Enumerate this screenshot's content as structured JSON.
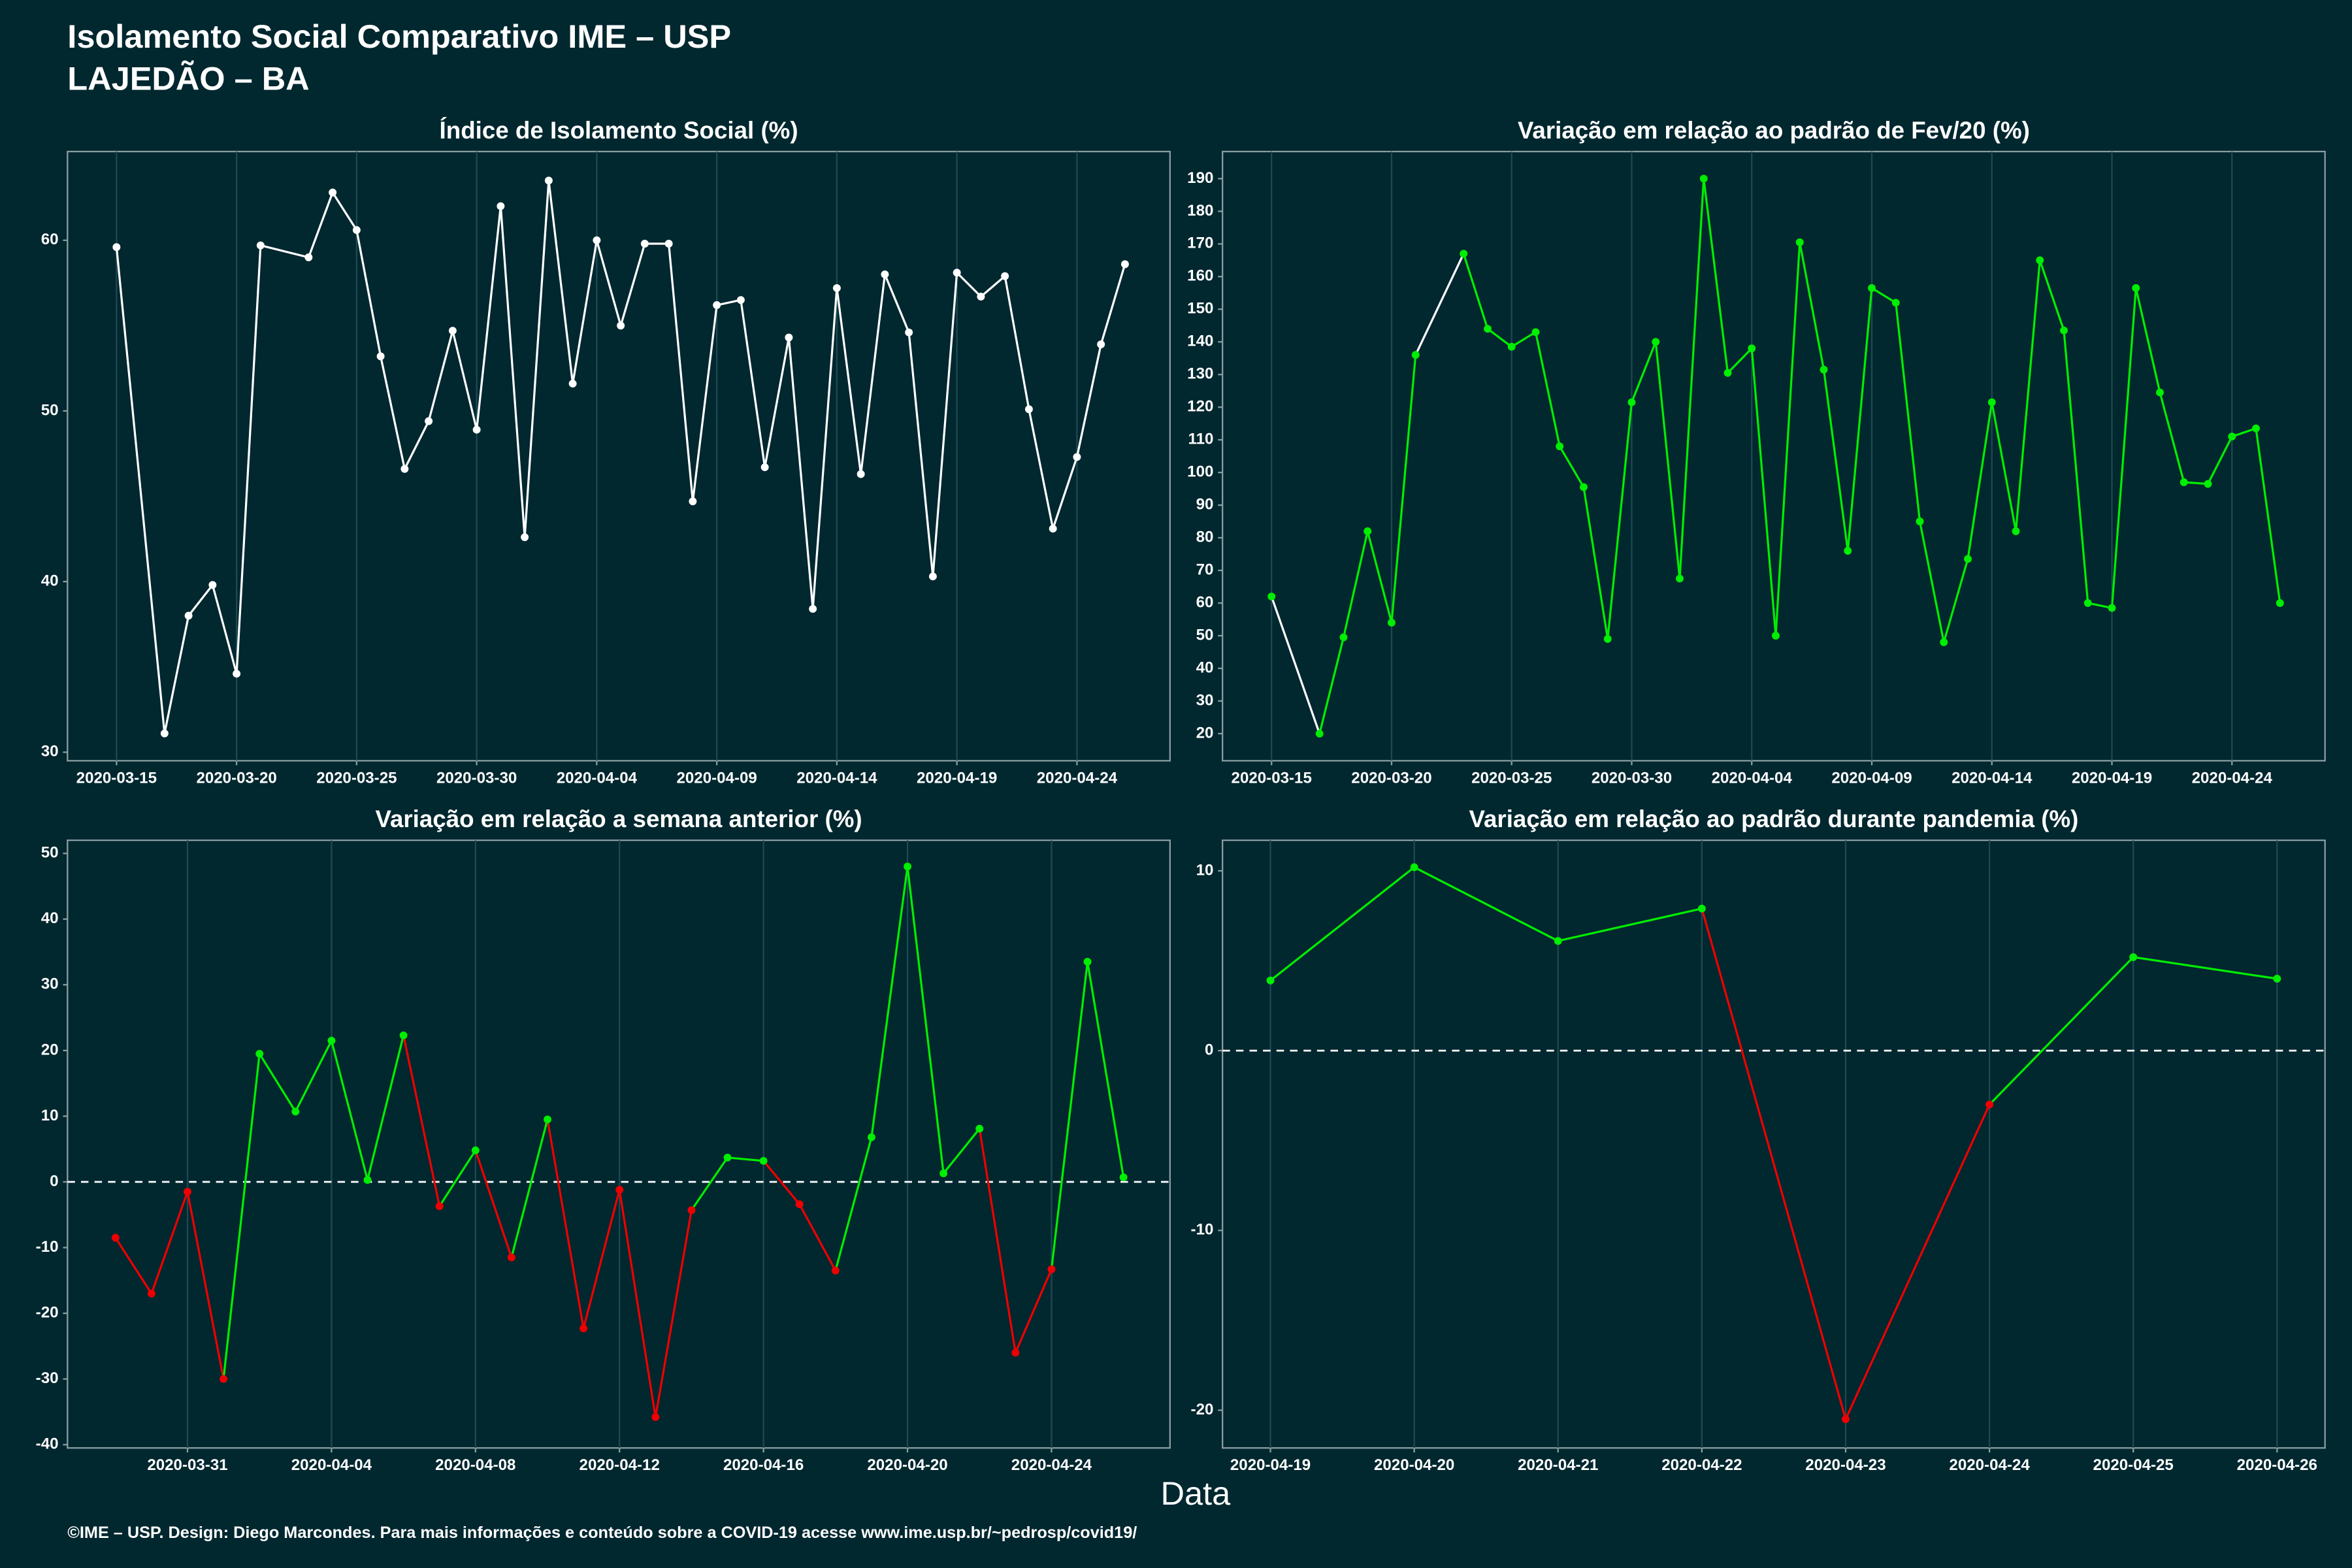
{
  "page": {
    "title": "Isolamento Social Comparativo IME – USP",
    "subtitle": "LAJEDÃO – BA",
    "x_label": "Data",
    "footer": "©IME – USP. Design: Diego Marcondes. Para mais informações e conteúdo sobre a COVID-19 acesse www.ime.usp.br/~pedrosp/covid19/"
  },
  "chart_data": [
    {
      "type": "line",
      "title": "Índice de Isolamento Social (%)",
      "color": "#ffffff",
      "gap_color": "#ffffff",
      "x": [
        "2020-03-15",
        "2020-03-17",
        "2020-03-18",
        "2020-03-19",
        "2020-03-20",
        "2020-03-21",
        "2020-03-23",
        "2020-03-24",
        "2020-03-25",
        "2020-03-26",
        "2020-03-27",
        "2020-03-28",
        "2020-03-29",
        "2020-03-30",
        "2020-03-31",
        "2020-04-01",
        "2020-04-02",
        "2020-04-03",
        "2020-04-04",
        "2020-04-05",
        "2020-04-06",
        "2020-04-07",
        "2020-04-08",
        "2020-04-09",
        "2020-04-10",
        "2020-04-11",
        "2020-04-12",
        "2020-04-13",
        "2020-04-14",
        "2020-04-15",
        "2020-04-16",
        "2020-04-17",
        "2020-04-18",
        "2020-04-19",
        "2020-04-20",
        "2020-04-21",
        "2020-04-22",
        "2020-04-23",
        "2020-04-24",
        "2020-04-25",
        "2020-04-26"
      ],
      "values": [
        59.6,
        31.1,
        38,
        39.8,
        34.6,
        59.7,
        59,
        62.8,
        60.6,
        53.2,
        46.6,
        49.4,
        54.7,
        48.9,
        62,
        42.6,
        63.5,
        51.6,
        60,
        55,
        59.8,
        59.8,
        44.7,
        56.2,
        56.5,
        46.7,
        54.3,
        38.4,
        57.2,
        46.3,
        58,
        54.6,
        40.3,
        58.1,
        56.7,
        57.9,
        50.1,
        43.1,
        47.3,
        53.9,
        58.6
      ],
      "xlim": [
        "2020-03-12T23:00",
        "2020-04-27T21:00"
      ],
      "xticks": [
        "2020-03-15",
        "2020-03-20",
        "2020-03-25",
        "2020-03-30",
        "2020-04-04",
        "2020-04-09",
        "2020-04-14",
        "2020-04-19",
        "2020-04-24"
      ],
      "ylim": [
        29.5,
        65.2
      ],
      "yticks": [
        30,
        40,
        50,
        60
      ]
    },
    {
      "type": "line",
      "title": "Variação em relação ao padrão de Fev/20 (%)",
      "color": "#00ee00",
      "gap_color": "#ffffff",
      "x": [
        "2020-03-15",
        "2020-03-17",
        "2020-03-18",
        "2020-03-19",
        "2020-03-20",
        "2020-03-21",
        "2020-03-23",
        "2020-03-24",
        "2020-03-25",
        "2020-03-26",
        "2020-03-27",
        "2020-03-28",
        "2020-03-29",
        "2020-03-30",
        "2020-03-31",
        "2020-04-01",
        "2020-04-02",
        "2020-04-03",
        "2020-04-04",
        "2020-04-05",
        "2020-04-06",
        "2020-04-07",
        "2020-04-08",
        "2020-04-09",
        "2020-04-10",
        "2020-04-11",
        "2020-04-12",
        "2020-04-13",
        "2020-04-14",
        "2020-04-15",
        "2020-04-16",
        "2020-04-17",
        "2020-04-18",
        "2020-04-19",
        "2020-04-20",
        "2020-04-21",
        "2020-04-22",
        "2020-04-23",
        "2020-04-24",
        "2020-04-25",
        "2020-04-26"
      ],
      "values": [
        62,
        20,
        49.5,
        82,
        54,
        136,
        167,
        144,
        138.5,
        143,
        108,
        95.5,
        49,
        121.5,
        140,
        67.5,
        190,
        130.5,
        138,
        50,
        170.5,
        131.5,
        76,
        156.5,
        152,
        85,
        48,
        73.5,
        121.5,
        82,
        165,
        143.5,
        60,
        58.5,
        156.5,
        124.5,
        97,
        96.5,
        111,
        113.5,
        60
      ],
      "xlim": [
        "2020-03-12T23:00",
        "2020-04-27T21:00"
      ],
      "xticks": [
        "2020-03-15",
        "2020-03-20",
        "2020-03-25",
        "2020-03-30",
        "2020-04-04",
        "2020-04-09",
        "2020-04-14",
        "2020-04-19",
        "2020-04-24"
      ],
      "ylim": [
        11.7,
        198.3
      ],
      "yticks": [
        20,
        30,
        40,
        50,
        60,
        70,
        80,
        90,
        100,
        110,
        120,
        130,
        140,
        150,
        160,
        170,
        180,
        190
      ]
    },
    {
      "type": "line",
      "title": "Variação em relação a semana anterior (%)",
      "color": "#00ee00",
      "negative_color": "#ee0000",
      "zero_line": true,
      "x": [
        "2020-03-29",
        "2020-03-30",
        "2020-03-31",
        "2020-04-01",
        "2020-04-02",
        "2020-04-03",
        "2020-04-04",
        "2020-04-05",
        "2020-04-06",
        "2020-04-07",
        "2020-04-08",
        "2020-04-09",
        "2020-04-10",
        "2020-04-11",
        "2020-04-12",
        "2020-04-13",
        "2020-04-14",
        "2020-04-15",
        "2020-04-16",
        "2020-04-17",
        "2020-04-18",
        "2020-04-19",
        "2020-04-20",
        "2020-04-21",
        "2020-04-22",
        "2020-04-23",
        "2020-04-24",
        "2020-04-25",
        "2020-04-26"
      ],
      "values": [
        -8.5,
        -17,
        -1.5,
        -30,
        19.5,
        10.7,
        21.5,
        0.3,
        22.3,
        -3.7,
        4.8,
        -11.5,
        9.5,
        -22.3,
        -1.2,
        -35.8,
        -4.3,
        3.7,
        3.2,
        -3.4,
        -13.5,
        6.8,
        48,
        1.3,
        8.1,
        -26,
        -13.3,
        33.5,
        0.7
      ],
      "xlim": [
        "2020-03-27T16:00",
        "2020-04-27T07:00"
      ],
      "xticks": [
        "2020-03-31",
        "2020-04-04",
        "2020-04-08",
        "2020-04-12",
        "2020-04-16",
        "2020-04-20",
        "2020-04-24"
      ],
      "ylim": [
        -40.5,
        52
      ],
      "yticks": [
        50,
        40,
        30,
        20,
        10,
        0,
        -10,
        -20,
        -30,
        -40
      ]
    },
    {
      "type": "line",
      "title": "Variação em relação ao padrão durante pandemia (%)",
      "color": "#00ee00",
      "negative_color": "#ee0000",
      "zero_line": true,
      "x": [
        "2020-04-19",
        "2020-04-20",
        "2020-04-21",
        "2020-04-22",
        "2020-04-23",
        "2020-04-24",
        "2020-04-25",
        "2020-04-26"
      ],
      "values": [
        3.9,
        10.2,
        6.1,
        7.9,
        -20.5,
        -3,
        5.2,
        4
      ],
      "xlim": [
        "2020-04-18T16:00",
        "2020-04-26T08:00"
      ],
      "xticks": [
        "2020-04-19",
        "2020-04-20",
        "2020-04-21",
        "2020-04-22",
        "2020-04-23",
        "2020-04-24",
        "2020-04-25",
        "2020-04-26"
      ],
      "ylim": [
        -22.1,
        11.7
      ],
      "yticks": [
        10,
        0,
        -10,
        -20
      ]
    }
  ]
}
